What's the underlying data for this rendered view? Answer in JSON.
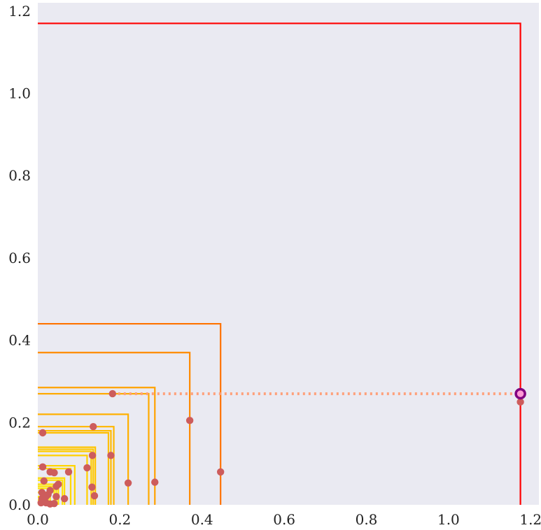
{
  "chart_data": {
    "type": "scatter",
    "title": "",
    "xlabel": "",
    "ylabel": "",
    "xlim": [
      0,
      1.22
    ],
    "ylim": [
      0,
      1.22
    ],
    "xticks": [
      "0.0",
      "0.2",
      "0.4",
      "0.6",
      "0.8",
      "1.0",
      "1.2"
    ],
    "yticks": [
      "0.0",
      "0.2",
      "0.4",
      "0.6",
      "0.8",
      "1.0",
      "1.2"
    ],
    "grid": false,
    "background": "#eaeaf2",
    "colors": {
      "point": "#cd5c5c",
      "highlight": "#800080",
      "dotted_line": "#ffa07a"
    },
    "points": [
      {
        "x": 0.445,
        "y": 0.08
      },
      {
        "x": 0.37,
        "y": 0.205
      },
      {
        "x": 0.285,
        "y": 0.055
      },
      {
        "x": 0.22,
        "y": 0.053
      },
      {
        "x": 0.182,
        "y": 0.27
      },
      {
        "x": 0.178,
        "y": 0.12
      },
      {
        "x": 0.135,
        "y": 0.19
      },
      {
        "x": 0.133,
        "y": 0.12
      },
      {
        "x": 0.132,
        "y": 0.043
      },
      {
        "x": 0.138,
        "y": 0.022
      },
      {
        "x": 0.12,
        "y": 0.09
      },
      {
        "x": 0.075,
        "y": 0.08
      },
      {
        "x": 0.065,
        "y": 0.015
      },
      {
        "x": 0.05,
        "y": 0.05
      },
      {
        "x": 0.045,
        "y": 0.045
      },
      {
        "x": 0.04,
        "y": 0.078
      },
      {
        "x": 0.03,
        "y": 0.08
      },
      {
        "x": 0.03,
        "y": 0.035
      },
      {
        "x": 0.025,
        "y": 0.025
      },
      {
        "x": 0.015,
        "y": 0.058
      },
      {
        "x": 0.012,
        "y": 0.092
      },
      {
        "x": 0.012,
        "y": 0.175
      },
      {
        "x": 0.01,
        "y": 0.03
      },
      {
        "x": 0.01,
        "y": 0.015
      },
      {
        "x": 0.008,
        "y": 0.005
      },
      {
        "x": 0.02,
        "y": 0.005
      },
      {
        "x": 0.03,
        "y": 0.002
      },
      {
        "x": 0.04,
        "y": 0.003
      },
      {
        "x": 0.045,
        "y": 0.02
      },
      {
        "x": 0.02,
        "y": 0.02
      },
      {
        "x": 1.175,
        "y": 0.25
      }
    ],
    "highlight_point": {
      "x": 1.175,
      "y": 0.27
    },
    "dotted_line": {
      "x1": 0.182,
      "x2": 1.175,
      "y": 0.27
    },
    "boxes": [
      {
        "x": 1.175,
        "y": 1.17,
        "color": "#ff0000"
      },
      {
        "x": 0.445,
        "y": 0.44,
        "color": "#ff7300"
      },
      {
        "x": 0.37,
        "y": 0.37,
        "color": "#ff8a00"
      },
      {
        "x": 0.285,
        "y": 0.285,
        "color": "#ffa200"
      },
      {
        "x": 0.27,
        "y": 0.27,
        "color": "#ffaa00"
      },
      {
        "x": 0.22,
        "y": 0.22,
        "color": "#ffb000"
      },
      {
        "x": 0.185,
        "y": 0.19,
        "color": "#ffb700"
      },
      {
        "x": 0.178,
        "y": 0.18,
        "color": "#ffbb00"
      },
      {
        "x": 0.172,
        "y": 0.175,
        "color": "#ffbf00"
      },
      {
        "x": 0.14,
        "y": 0.14,
        "color": "#ffc400"
      },
      {
        "x": 0.135,
        "y": 0.135,
        "color": "#ffc800"
      },
      {
        "x": 0.13,
        "y": 0.13,
        "color": "#ffcc00"
      },
      {
        "x": 0.12,
        "y": 0.12,
        "color": "#ffd000"
      },
      {
        "x": 0.09,
        "y": 0.095,
        "color": "#ffd400"
      },
      {
        "x": 0.08,
        "y": 0.088,
        "color": "#ffd800"
      },
      {
        "x": 0.065,
        "y": 0.065,
        "color": "#ffdc00"
      },
      {
        "x": 0.06,
        "y": 0.06,
        "color": "#ffdf00"
      },
      {
        "x": 0.05,
        "y": 0.05,
        "color": "#ffe200"
      },
      {
        "x": 0.045,
        "y": 0.045,
        "color": "#ffe500"
      },
      {
        "x": 0.04,
        "y": 0.04,
        "color": "#ffe800"
      },
      {
        "x": 0.03,
        "y": 0.03,
        "color": "#ffea00"
      },
      {
        "x": 0.025,
        "y": 0.03,
        "color": "#ffec00"
      },
      {
        "x": 0.02,
        "y": 0.02,
        "color": "#ffee00"
      },
      {
        "x": 0.015,
        "y": 0.018,
        "color": "#fff000"
      },
      {
        "x": 0.01,
        "y": 0.012,
        "color": "#fff200"
      }
    ]
  }
}
